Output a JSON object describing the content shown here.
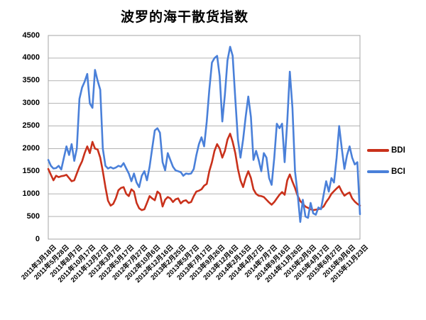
{
  "title": "波罗的海干散货指数",
  "legend": {
    "items": [
      {
        "label": "BDI",
        "color": "#C9311B"
      },
      {
        "label": "BCI",
        "color": "#4A80D9"
      }
    ]
  },
  "chart_data": {
    "type": "line",
    "title": "波罗的海干散货指数",
    "ylim": [
      0,
      4500
    ],
    "y_ticks": [
      0,
      500,
      1000,
      1500,
      2000,
      2500,
      3000,
      3500,
      4000,
      4500
    ],
    "grid": true,
    "legend_position": "right",
    "x_note": "25 axis tick labels; each series has 121 weekly-sampled points, one tick per 5 points",
    "categories": [
      "2011年3月18日",
      "2011年5月28日",
      "2011年8月7日",
      "2011年10月17日",
      "2011年12月27日",
      "2012年3月7日",
      "2012年5月17日",
      "2012年7月27日",
      "2012年10月6日",
      "2012年12月16日",
      "2013年2月25日",
      "2013年5月7日",
      "2013年7月17日",
      "2013年9月26日",
      "2013年12月6日",
      "2014年2月15日",
      "2014年4月27日",
      "2014年7月7日",
      "2014年9月16日",
      "2014年11月26日",
      "2015年2月5日",
      "2015年4月17日",
      "2015年6月27日",
      "2015年9月6日",
      "2015年11月23日"
    ],
    "series": [
      {
        "name": "BDI",
        "color": "#C9311B",
        "values": [
          1550,
          1420,
          1300,
          1400,
          1370,
          1390,
          1400,
          1420,
          1350,
          1280,
          1300,
          1450,
          1600,
          1720,
          1900,
          2050,
          1900,
          2150,
          2000,
          1980,
          1800,
          1500,
          1150,
          850,
          740,
          780,
          900,
          1080,
          1130,
          1150,
          1000,
          950,
          1100,
          1050,
          800,
          680,
          640,
          660,
          800,
          950,
          900,
          860,
          1050,
          1000,
          720,
          870,
          930,
          900,
          820,
          880,
          900,
          790,
          840,
          860,
          800,
          820,
          950,
          1050,
          1070,
          1100,
          1180,
          1220,
          1500,
          1700,
          1950,
          2100,
          2000,
          1800,
          1950,
          2200,
          2330,
          2150,
          1900,
          1550,
          1300,
          1150,
          1350,
          1500,
          1350,
          1100,
          1000,
          960,
          950,
          930,
          870,
          810,
          760,
          820,
          900,
          980,
          1040,
          980,
          1300,
          1430,
          1270,
          1130,
          960,
          840,
          780,
          720,
          690,
          660,
          640,
          650,
          660,
          680,
          720,
          820,
          900,
          1000,
          1060,
          1120,
          1170,
          1050,
          960,
          1000,
          1030,
          900,
          830,
          780,
          740
        ]
      },
      {
        "name": "BCI",
        "color": "#4A80D9",
        "values": [
          1750,
          1620,
          1560,
          1570,
          1620,
          1540,
          1800,
          2050,
          1860,
          2100,
          1730,
          2000,
          3100,
          3350,
          3480,
          3650,
          3000,
          2900,
          3740,
          3500,
          3300,
          2000,
          1620,
          1560,
          1590,
          1560,
          1580,
          1620,
          1600,
          1680,
          1560,
          1450,
          1280,
          1450,
          1250,
          1150,
          1400,
          1500,
          1300,
          1600,
          2000,
          2400,
          2450,
          2350,
          1700,
          1520,
          1900,
          1750,
          1600,
          1520,
          1500,
          1480,
          1400,
          1450,
          1440,
          1450,
          1550,
          1850,
          2100,
          2250,
          2050,
          2600,
          3300,
          3900,
          4000,
          4050,
          3600,
          2600,
          3200,
          3950,
          4250,
          4050,
          3100,
          2200,
          1800,
          2200,
          2700,
          3150,
          2700,
          1750,
          1950,
          1750,
          1500,
          1900,
          1800,
          1350,
          1200,
          1800,
          2550,
          2450,
          2550,
          1700,
          2600,
          3700,
          2900,
          1500,
          1000,
          380,
          870,
          500,
          470,
          800,
          570,
          540,
          700,
          660,
          980,
          1280,
          1050,
          1350,
          1250,
          1800,
          2500,
          2000,
          1550,
          1850,
          2050,
          1800,
          1650,
          1700,
          550
        ]
      }
    ],
    "style": {
      "grid_color": "#b3b3b3",
      "border_color": "#a6a6a6",
      "line_width": 2.6
    }
  }
}
